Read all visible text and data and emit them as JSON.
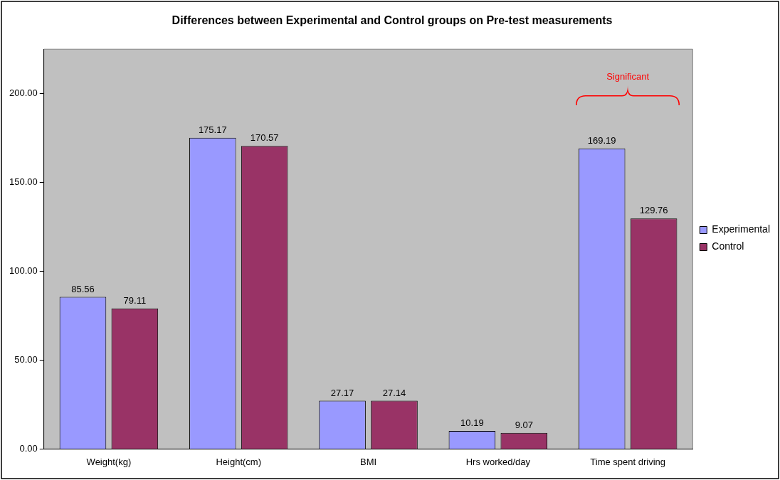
{
  "chart_data": {
    "type": "bar",
    "title": "Differences between Experimental and Control groups on Pre-test measurements",
    "categories": [
      "Weight(kg)",
      "Height(cm)",
      "BMI",
      "Hrs worked/day",
      "Time spent driving"
    ],
    "series": [
      {
        "name": "Experimental",
        "color": "#9999ff",
        "values": [
          85.56,
          175.17,
          27.17,
          10.19,
          169.19
        ]
      },
      {
        "name": "Control",
        "color": "#993366",
        "values": [
          79.11,
          170.57,
          27.14,
          9.07,
          129.76
        ]
      }
    ],
    "ylim": [
      0,
      225
    ],
    "yticks": [
      {
        "value": 0,
        "label": "0.00"
      },
      {
        "value": 50,
        "label": "50.00"
      },
      {
        "value": 100,
        "label": "100.00"
      },
      {
        "value": 150,
        "label": "150.00"
      },
      {
        "value": 200,
        "label": "200.00"
      }
    ],
    "annotations": [
      "Significant"
    ],
    "data_labels": true,
    "grid": false,
    "legend": "right"
  }
}
